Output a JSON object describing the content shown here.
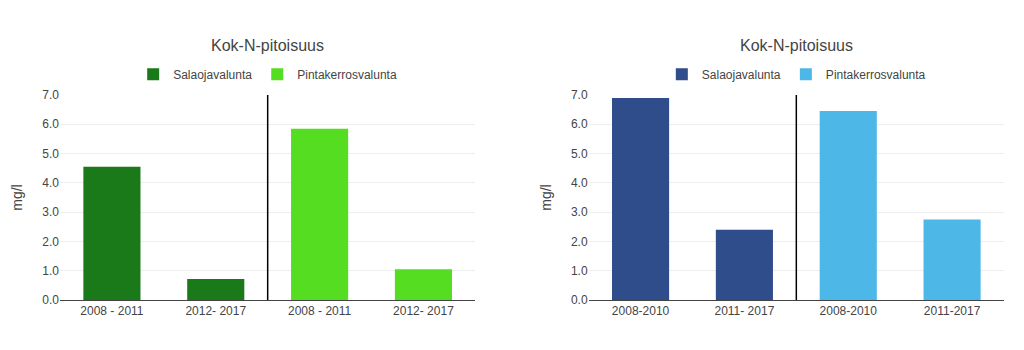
{
  "chart_data": [
    {
      "type": "bar",
      "title": "Kok-N-pitoisuus",
      "categories": [
        "2008 - 2011",
        "2012- 2017",
        "2008 - 2011",
        "2012- 2017"
      ],
      "series": [
        {
          "name": "Salaojavalunta",
          "color": "#1a7a1a",
          "values": [
            4.55,
            0.72,
            null,
            null
          ]
        },
        {
          "name": "Pintakerrosvalunta",
          "color": "#55dd22",
          "values": [
            null,
            null,
            5.85,
            1.05
          ]
        }
      ],
      "ylabel": "mg/l",
      "ylim": [
        0,
        7.0
      ],
      "yticks": [
        {
          "value": 0.0,
          "label": "0.0"
        },
        {
          "value": 1.0,
          "label": "1.0"
        },
        {
          "value": 2.0,
          "label": "2.0"
        },
        {
          "value": 3.0,
          "label": "3.0"
        },
        {
          "value": 4.0,
          "label": "4.0"
        },
        {
          "value": 5.0,
          "label": "5.0"
        },
        {
          "value": 6.0,
          "label": "6.0"
        },
        {
          "value": 7.0,
          "label": "7.0"
        }
      ],
      "grid": true,
      "legend": "top"
    },
    {
      "type": "bar",
      "title": "Kok-N-pitoisuus",
      "categories": [
        "2008-2010",
        "2011- 2017",
        "2008-2010",
        "2011-2017"
      ],
      "series": [
        {
          "name": "Salaojavalunta",
          "color": "#2e4d8a",
          "values": [
            6.9,
            2.4,
            null,
            null
          ]
        },
        {
          "name": "Pintakerrosvalunta",
          "color": "#4db8e8",
          "values": [
            null,
            null,
            6.45,
            2.75
          ]
        }
      ],
      "ylabel": "mg/l",
      "ylim": [
        0,
        7.0
      ],
      "yticks": [
        {
          "value": 0.0,
          "label": "0.0"
        },
        {
          "value": 1.0,
          "label": "1.0"
        },
        {
          "value": 2.0,
          "label": "2.0"
        },
        {
          "value": 3.0,
          "label": "3.0"
        },
        {
          "value": 4.0,
          "label": "4.0"
        },
        {
          "value": 5.0,
          "label": "5.0"
        },
        {
          "value": 6.0,
          "label": "6.0"
        },
        {
          "value": 7.0,
          "label": "7.0"
        }
      ],
      "grid": true,
      "legend": "top"
    }
  ]
}
